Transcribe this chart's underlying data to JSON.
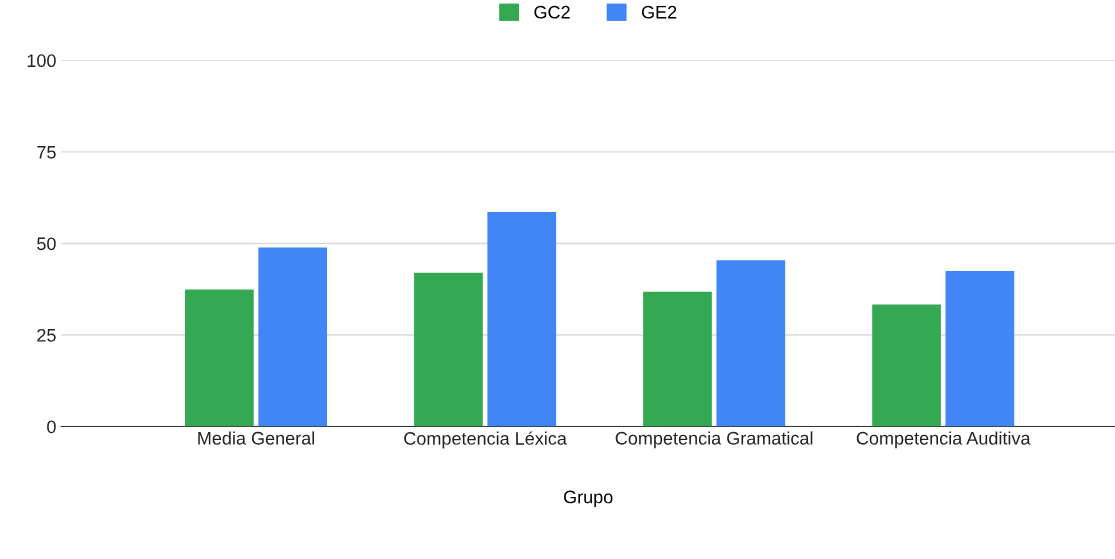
{
  "chart_data": {
    "type": "bar",
    "xlabel": "Grupo",
    "categories": [
      "Media General",
      "Competencia Léxica",
      "Competencia Gramatical",
      "Competencia Auditiva"
    ],
    "series": [
      {
        "name": "GC2",
        "color": "#34a853",
        "values": [
          37.4,
          42.0,
          36.8,
          33.3
        ]
      },
      {
        "name": "GE2",
        "color": "#4285f4",
        "values": [
          48.9,
          58.6,
          45.4,
          42.5
        ]
      }
    ],
    "ylim": [
      0,
      100
    ],
    "yticks": [
      0,
      25,
      50,
      75,
      100
    ],
    "grid": "y",
    "legend": "top"
  }
}
